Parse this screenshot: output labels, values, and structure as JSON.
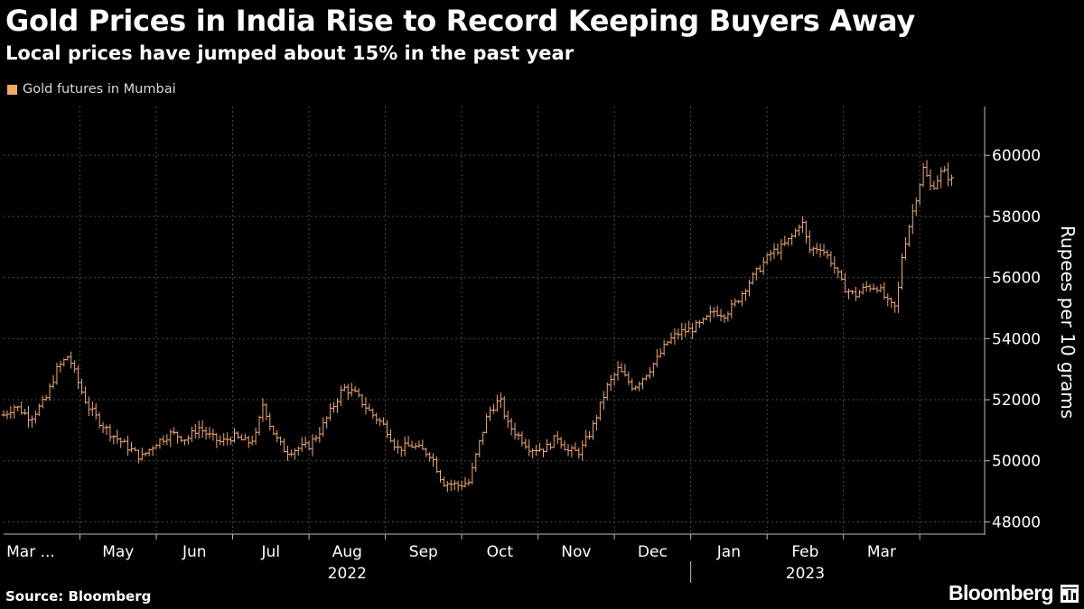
{
  "header": {
    "title": "Gold Prices in India Rise to Record Keeping Buyers Away",
    "subtitle": "Local prices have jumped about 15% in the past year"
  },
  "legend": {
    "label": "Gold futures in Mumbai",
    "color": "#f7a85c"
  },
  "footer": {
    "source": "Source: Bloomberg",
    "brand": "Bloomberg",
    "brand_icon": "bloomberg-terminal-icon"
  },
  "colors": {
    "background": "#000000",
    "series": "#f7a85c",
    "grid": "#4a4a4a",
    "axis": "#bbbbbb",
    "text": "#ffffff"
  },
  "chart_data": {
    "type": "ohlc",
    "title": "Gold Prices in India Rise to Record Keeping Buyers Away",
    "subtitle": "Local prices have jumped about 15% in the past year",
    "ylabel": "Rupees per 10 grams",
    "ylim": [
      47600,
      61600
    ],
    "y_ticks": [
      48000,
      50000,
      52000,
      54000,
      56000,
      58000,
      60000
    ],
    "y_tick_labels": [
      "48000",
      "50000",
      "52000",
      "54000",
      "56000",
      "58000",
      "60000"
    ],
    "y_axis_position": "right",
    "grid": true,
    "legend_position": "top-left",
    "x_range_months": [
      0,
      12.85
    ],
    "x_ticks": [
      {
        "label": "Mar ...",
        "pos": 0.25
      },
      {
        "label": "May",
        "pos": 1.5
      },
      {
        "label": "Jun",
        "pos": 2.5
      },
      {
        "label": "Jul",
        "pos": 3.5
      },
      {
        "label": "Aug",
        "pos": 4.5
      },
      {
        "label": "Sep",
        "pos": 5.5
      },
      {
        "label": "Oct",
        "pos": 6.5
      },
      {
        "label": "Nov",
        "pos": 7.5
      },
      {
        "label": "Dec",
        "pos": 8.5
      },
      {
        "label": "Jan",
        "pos": 9.5
      },
      {
        "label": "Feb",
        "pos": 10.5
      },
      {
        "label": "Mar",
        "pos": 11.5
      }
    ],
    "x_gridlines": [
      1,
      2,
      3,
      4,
      5,
      6,
      7,
      8,
      9,
      10,
      11,
      12
    ],
    "year_labels": [
      {
        "label": "2022",
        "pos": 4.5
      },
      {
        "label": "2023",
        "pos": 10.5
      }
    ],
    "year_separator": 9,
    "x_start_date": "2022-03-14",
    "x_end_date": "2023-03-10",
    "series": [
      {
        "name": "Gold futures in Mumbai",
        "anchors": [
          [
            0.0,
            51500
          ],
          [
            0.15,
            51800
          ],
          [
            0.35,
            51400
          ],
          [
            0.55,
            52000
          ],
          [
            0.7,
            53000
          ],
          [
            0.85,
            53450
          ],
          [
            1.0,
            52400
          ],
          [
            1.1,
            51800
          ],
          [
            1.25,
            51300
          ],
          [
            1.4,
            50900
          ],
          [
            1.55,
            50600
          ],
          [
            1.8,
            50100
          ],
          [
            2.0,
            50600
          ],
          [
            2.2,
            50900
          ],
          [
            2.4,
            50700
          ],
          [
            2.55,
            51100
          ],
          [
            2.7,
            50800
          ],
          [
            2.85,
            50600
          ],
          [
            3.0,
            50800
          ],
          [
            3.2,
            50600
          ],
          [
            3.3,
            50800
          ],
          [
            3.4,
            51900
          ],
          [
            3.5,
            51100
          ],
          [
            3.6,
            50600
          ],
          [
            3.7,
            50300
          ],
          [
            3.85,
            50400
          ],
          [
            4.0,
            50500
          ],
          [
            4.15,
            51000
          ],
          [
            4.3,
            51700
          ],
          [
            4.45,
            52400
          ],
          [
            4.6,
            52200
          ],
          [
            4.8,
            51600
          ],
          [
            5.0,
            51100
          ],
          [
            5.15,
            50400
          ],
          [
            5.35,
            50500
          ],
          [
            5.6,
            50200
          ],
          [
            5.75,
            49300
          ],
          [
            5.95,
            49200
          ],
          [
            6.1,
            49300
          ],
          [
            6.2,
            50300
          ],
          [
            6.35,
            51600
          ],
          [
            6.5,
            52000
          ],
          [
            6.6,
            51200
          ],
          [
            6.75,
            50800
          ],
          [
            6.9,
            50400
          ],
          [
            7.1,
            50400
          ],
          [
            7.25,
            50800
          ],
          [
            7.4,
            50300
          ],
          [
            7.55,
            50300
          ],
          [
            7.7,
            51000
          ],
          [
            7.9,
            52400
          ],
          [
            8.05,
            53000
          ],
          [
            8.25,
            52400
          ],
          [
            8.4,
            52800
          ],
          [
            8.55,
            53300
          ],
          [
            8.7,
            53900
          ],
          [
            8.85,
            54200
          ],
          [
            9.0,
            54300
          ],
          [
            9.15,
            54500
          ],
          [
            9.3,
            54900
          ],
          [
            9.45,
            54800
          ],
          [
            9.6,
            55200
          ],
          [
            9.75,
            55800
          ],
          [
            9.9,
            56300
          ],
          [
            10.05,
            56800
          ],
          [
            10.2,
            57000
          ],
          [
            10.35,
            57400
          ],
          [
            10.45,
            57900
          ],
          [
            10.55,
            56900
          ],
          [
            10.7,
            57000
          ],
          [
            10.85,
            56500
          ],
          [
            11.0,
            55700
          ],
          [
            11.15,
            55400
          ],
          [
            11.3,
            55700
          ],
          [
            11.45,
            55700
          ],
          [
            11.6,
            55100
          ],
          [
            11.7,
            55000
          ],
          [
            11.75,
            56500
          ],
          [
            11.85,
            57600
          ],
          [
            11.95,
            58600
          ],
          [
            12.05,
            59600
          ],
          [
            12.15,
            58900
          ],
          [
            12.3,
            59500
          ],
          [
            12.45,
            59100
          ]
        ]
      }
    ]
  }
}
